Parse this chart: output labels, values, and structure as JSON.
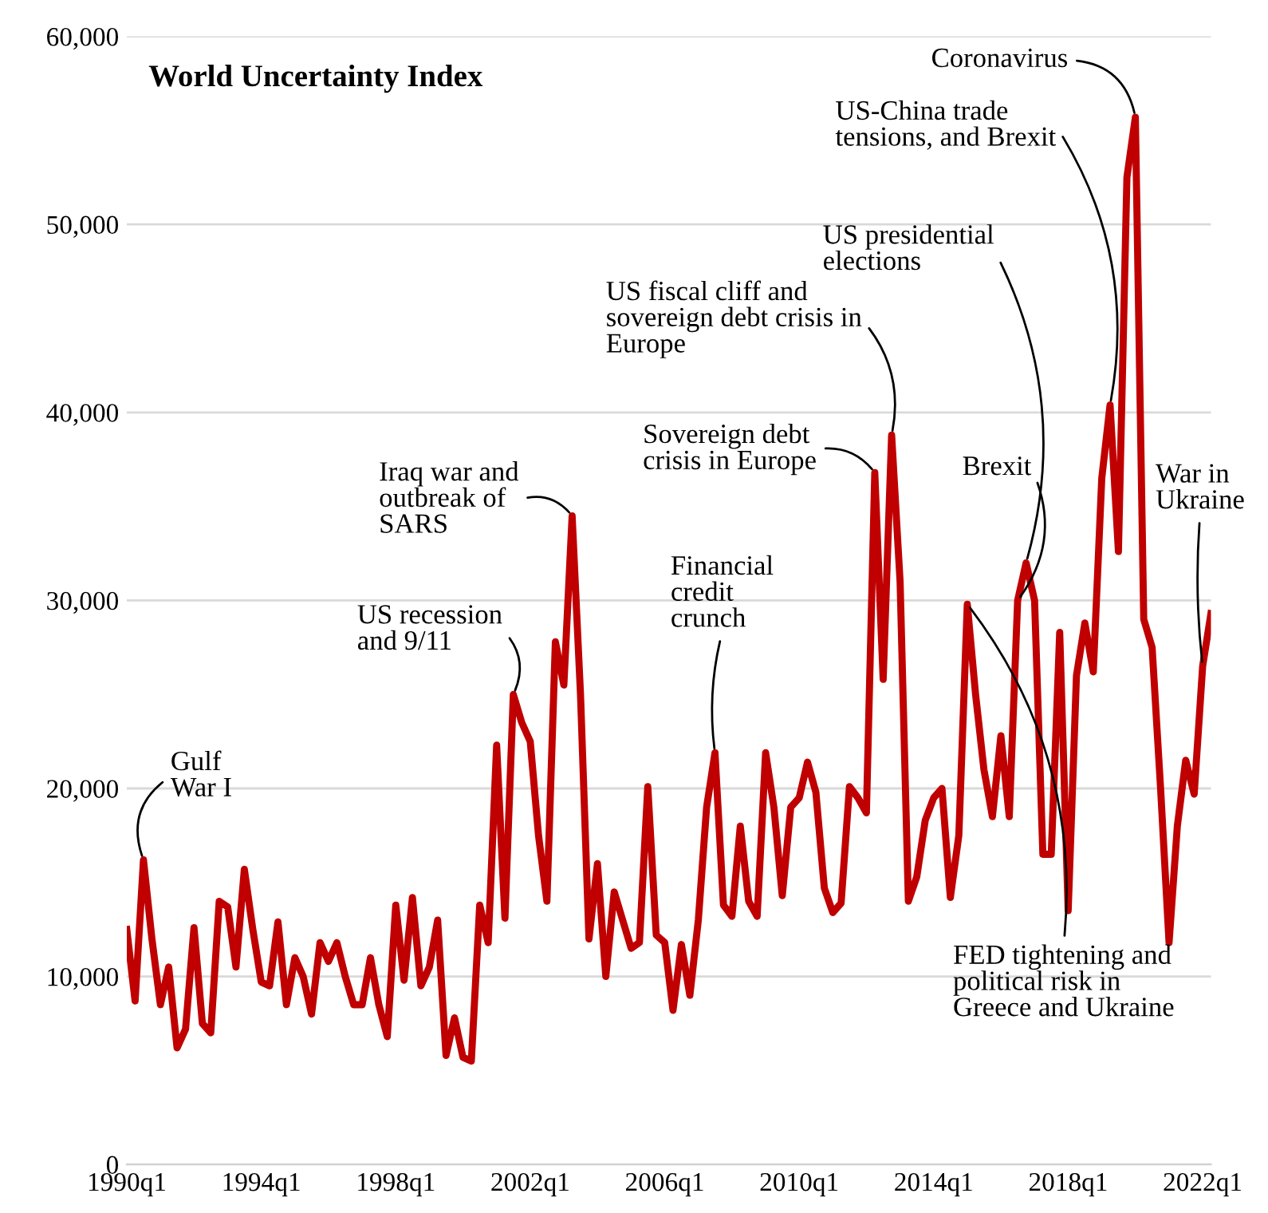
{
  "chart_data": {
    "type": "line",
    "title": "World Uncertainty Index",
    "x": [
      "1990-01",
      "1990-04",
      "1990-07",
      "1990-10",
      "1991-01",
      "1991-04",
      "1991-07",
      "1991-10",
      "1992-01",
      "1992-04",
      "1992-07",
      "1992-10",
      "1993-01",
      "1993-04",
      "1993-07",
      "1993-10",
      "1994-01",
      "1994-04",
      "1994-07",
      "1994-10",
      "1995-01",
      "1995-04",
      "1995-07",
      "1995-10",
      "1996-01",
      "1996-04",
      "1996-07",
      "1996-10",
      "1997-01",
      "1997-04",
      "1997-07",
      "1997-10",
      "1998-01",
      "1998-04",
      "1998-07",
      "1998-10",
      "1999-01",
      "1999-04",
      "1999-07",
      "1999-10",
      "2000-01",
      "2000-04",
      "2000-07",
      "2000-10",
      "2001-01",
      "2001-04",
      "2001-07",
      "2001-10",
      "2002-01",
      "2002-04",
      "2002-07",
      "2002-10",
      "2003-01",
      "2003-04",
      "2003-07",
      "2003-10",
      "2004-01",
      "2004-04",
      "2004-07",
      "2004-10",
      "2005-01",
      "2005-04",
      "2005-07",
      "2005-10",
      "2006-01",
      "2006-04",
      "2006-07",
      "2006-10",
      "2007-01",
      "2007-04",
      "2007-07",
      "2007-10",
      "2008-01",
      "2008-04",
      "2008-07",
      "2008-10",
      "2009-01",
      "2009-04",
      "2009-07",
      "2009-10",
      "2010-01",
      "2010-04",
      "2010-07",
      "2010-10",
      "2011-01",
      "2011-04",
      "2011-07",
      "2011-10",
      "2012-01",
      "2012-04",
      "2012-07",
      "2012-10",
      "2013-01",
      "2013-04",
      "2013-07",
      "2013-10",
      "2014-01",
      "2014-04",
      "2014-07",
      "2014-10",
      "2015-01",
      "2015-04",
      "2015-07",
      "2015-10",
      "2016-01",
      "2016-04",
      "2016-07",
      "2016-10",
      "2017-01",
      "2017-04",
      "2017-07",
      "2017-10",
      "2018-01",
      "2018-04",
      "2018-07",
      "2018-10",
      "2019-01",
      "2019-04",
      "2019-07",
      "2019-10",
      "2020-01",
      "2020-04",
      "2020-07",
      "2020-10",
      "2021-01",
      "2021-04",
      "2021-07",
      "2021-10",
      "2022-01",
      "2022-04"
    ],
    "series": [
      {
        "color": "#c00000",
        "values": [
          12500,
          8700,
          16200,
          12000,
          8500,
          10500,
          6200,
          7200,
          12600,
          7500,
          7000,
          14000,
          13700,
          10500,
          15700,
          12500,
          9700,
          9500,
          12900,
          8500,
          11000,
          10000,
          8000,
          11800,
          10800,
          11800,
          10000,
          8500,
          8500,
          11000,
          8500,
          6800,
          13800,
          9800,
          14200,
          9500,
          10500,
          13000,
          5800,
          7800,
          5700,
          5500,
          13800,
          11800,
          22300,
          13100,
          25000,
          23500,
          22500,
          17500,
          14000,
          27800,
          25500,
          34500,
          25000,
          12000,
          16000,
          10000,
          14500,
          13000,
          11500,
          11800,
          20100,
          12200,
          11800,
          8200,
          11700,
          9000,
          13000,
          19000,
          21900,
          13800,
          13200,
          18000,
          14000,
          13200,
          21900,
          19000,
          14300,
          19000,
          19500,
          21400,
          19800,
          14700,
          13400,
          13900,
          20100,
          19500,
          18700,
          36800,
          25800,
          38800,
          31000,
          14000,
          15300,
          18300,
          19500,
          20000,
          14200,
          17500,
          29800,
          25000,
          21000,
          18500,
          22800,
          18500,
          30000,
          32000,
          30000,
          16500,
          16500,
          28300,
          13500,
          26000,
          28800,
          26200,
          36500,
          40400,
          32600,
          52500,
          55700,
          29000,
          27500,
          20000,
          11800,
          18000,
          21500,
          19700,
          26500,
          29300
        ]
      }
    ],
    "xlim": [
      "1990-01",
      "2022-04"
    ],
    "xticks": [
      {
        "value": "1990-01",
        "label": "1990q1"
      },
      {
        "value": "1994-01",
        "label": "1994q1"
      },
      {
        "value": "1998-01",
        "label": "1998q1"
      },
      {
        "value": "2002-01",
        "label": "2002q1"
      },
      {
        "value": "2006-01",
        "label": "2006q1"
      },
      {
        "value": "2010-01",
        "label": "2010q1"
      },
      {
        "value": "2014-01",
        "label": "2014q1"
      },
      {
        "value": "2018-01",
        "label": "2018q1"
      },
      {
        "value": "2022-01",
        "label": "2022q1"
      }
    ],
    "ylim": [
      0,
      60000
    ],
    "yticks": [
      0,
      {
        "value": 10000,
        "label": "10,000"
      },
      {
        "value": 20000,
        "label": "20,000"
      },
      {
        "value": 30000,
        "label": "30,000"
      },
      {
        "value": 40000,
        "label": "40,000"
      },
      {
        "value": 50000,
        "label": "50,000"
      },
      {
        "value": 60000,
        "label": "60,000"
      }
    ],
    "grid": "y",
    "marker": "none",
    "line_style": "solid",
    "legend": false,
    "annotations": [
      {
        "text": "Gulf\nWar I",
        "x": "1990-07",
        "y": 16200
      },
      {
        "text": "US recession\nand 9/11",
        "x": "2001-07",
        "y": 25000
      },
      {
        "text": "Iraq war and\noutbreak of\nSARS",
        "x": "2003-04",
        "y": 34500
      },
      {
        "text": "Financial\ncredit\ncrunch",
        "x": "2007-07",
        "y": 21900
      },
      {
        "text": "Sovereign debt\ncrisis in Europe",
        "x": "2012-04",
        "y": 36800
      },
      {
        "text": "US fiscal cliff and\nsovereign debt crisis in\nEurope",
        "x": "2012-10",
        "y": 38800
      },
      {
        "text": "US presidential\nelections",
        "x": "2016-10",
        "y": 32000
      },
      {
        "text": "Brexit",
        "x": "2016-07",
        "y": 30000
      },
      {
        "text": "US-China trade\ntensions, and Brexit",
        "x": "2019-04",
        "y": 40400
      },
      {
        "text": "Coronavirus",
        "x": "2020-01",
        "y": 55700
      },
      {
        "text": "War in\nUkraine",
        "x": "2022-01",
        "y": 26500
      },
      {
        "text": "FED tightening and\npolitical risk in\nGreece and Ukraine",
        "x": "2015-01",
        "y": 29800
      }
    ]
  }
}
